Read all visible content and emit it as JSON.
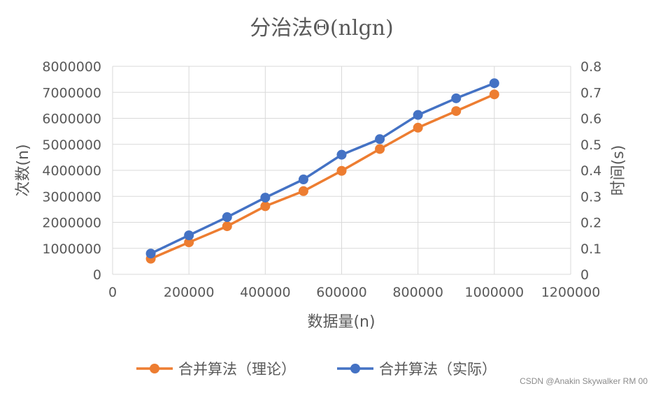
{
  "chart_data": {
    "type": "line",
    "title": "分治法Θ(nlgn)",
    "xlabel": "数据量(n)",
    "ylabel": "次数(n)",
    "y2label": "时间(s)",
    "xlim": [
      0,
      1200000
    ],
    "ylim": [
      0,
      8000000
    ],
    "y2lim": [
      0,
      0.8
    ],
    "x_ticks": [
      "0",
      "200000",
      "400000",
      "600000",
      "800000",
      "1000000",
      "1200000"
    ],
    "y_ticks": [
      "0",
      "1000000",
      "2000000",
      "3000000",
      "4000000",
      "5000000",
      "6000000",
      "7000000",
      "8000000"
    ],
    "y2_ticks": [
      "0",
      "0.1",
      "0.2",
      "0.3",
      "0.4",
      "0.5",
      "0.6",
      "0.7",
      "0.8"
    ],
    "grid": true,
    "legend_position": "bottom",
    "x": [
      100000,
      200000,
      300000,
      400000,
      500000,
      600000,
      700000,
      800000,
      900000,
      1000000
    ],
    "series": [
      {
        "name": "合并算法（理论）",
        "axis": "left",
        "color": "#ED7D31",
        "values": [
          600000,
          1230000,
          1850000,
          2620000,
          3200000,
          3980000,
          4820000,
          5640000,
          6280000,
          6920000
        ]
      },
      {
        "name": "合并算法（实际）",
        "axis": "right",
        "color": "#4472C4",
        "values": [
          0.08,
          0.15,
          0.22,
          0.295,
          0.365,
          0.46,
          0.52,
          0.613,
          0.677,
          0.735
        ]
      }
    ]
  },
  "watermark": "CSDN @Anakin Skywalker RM 00"
}
